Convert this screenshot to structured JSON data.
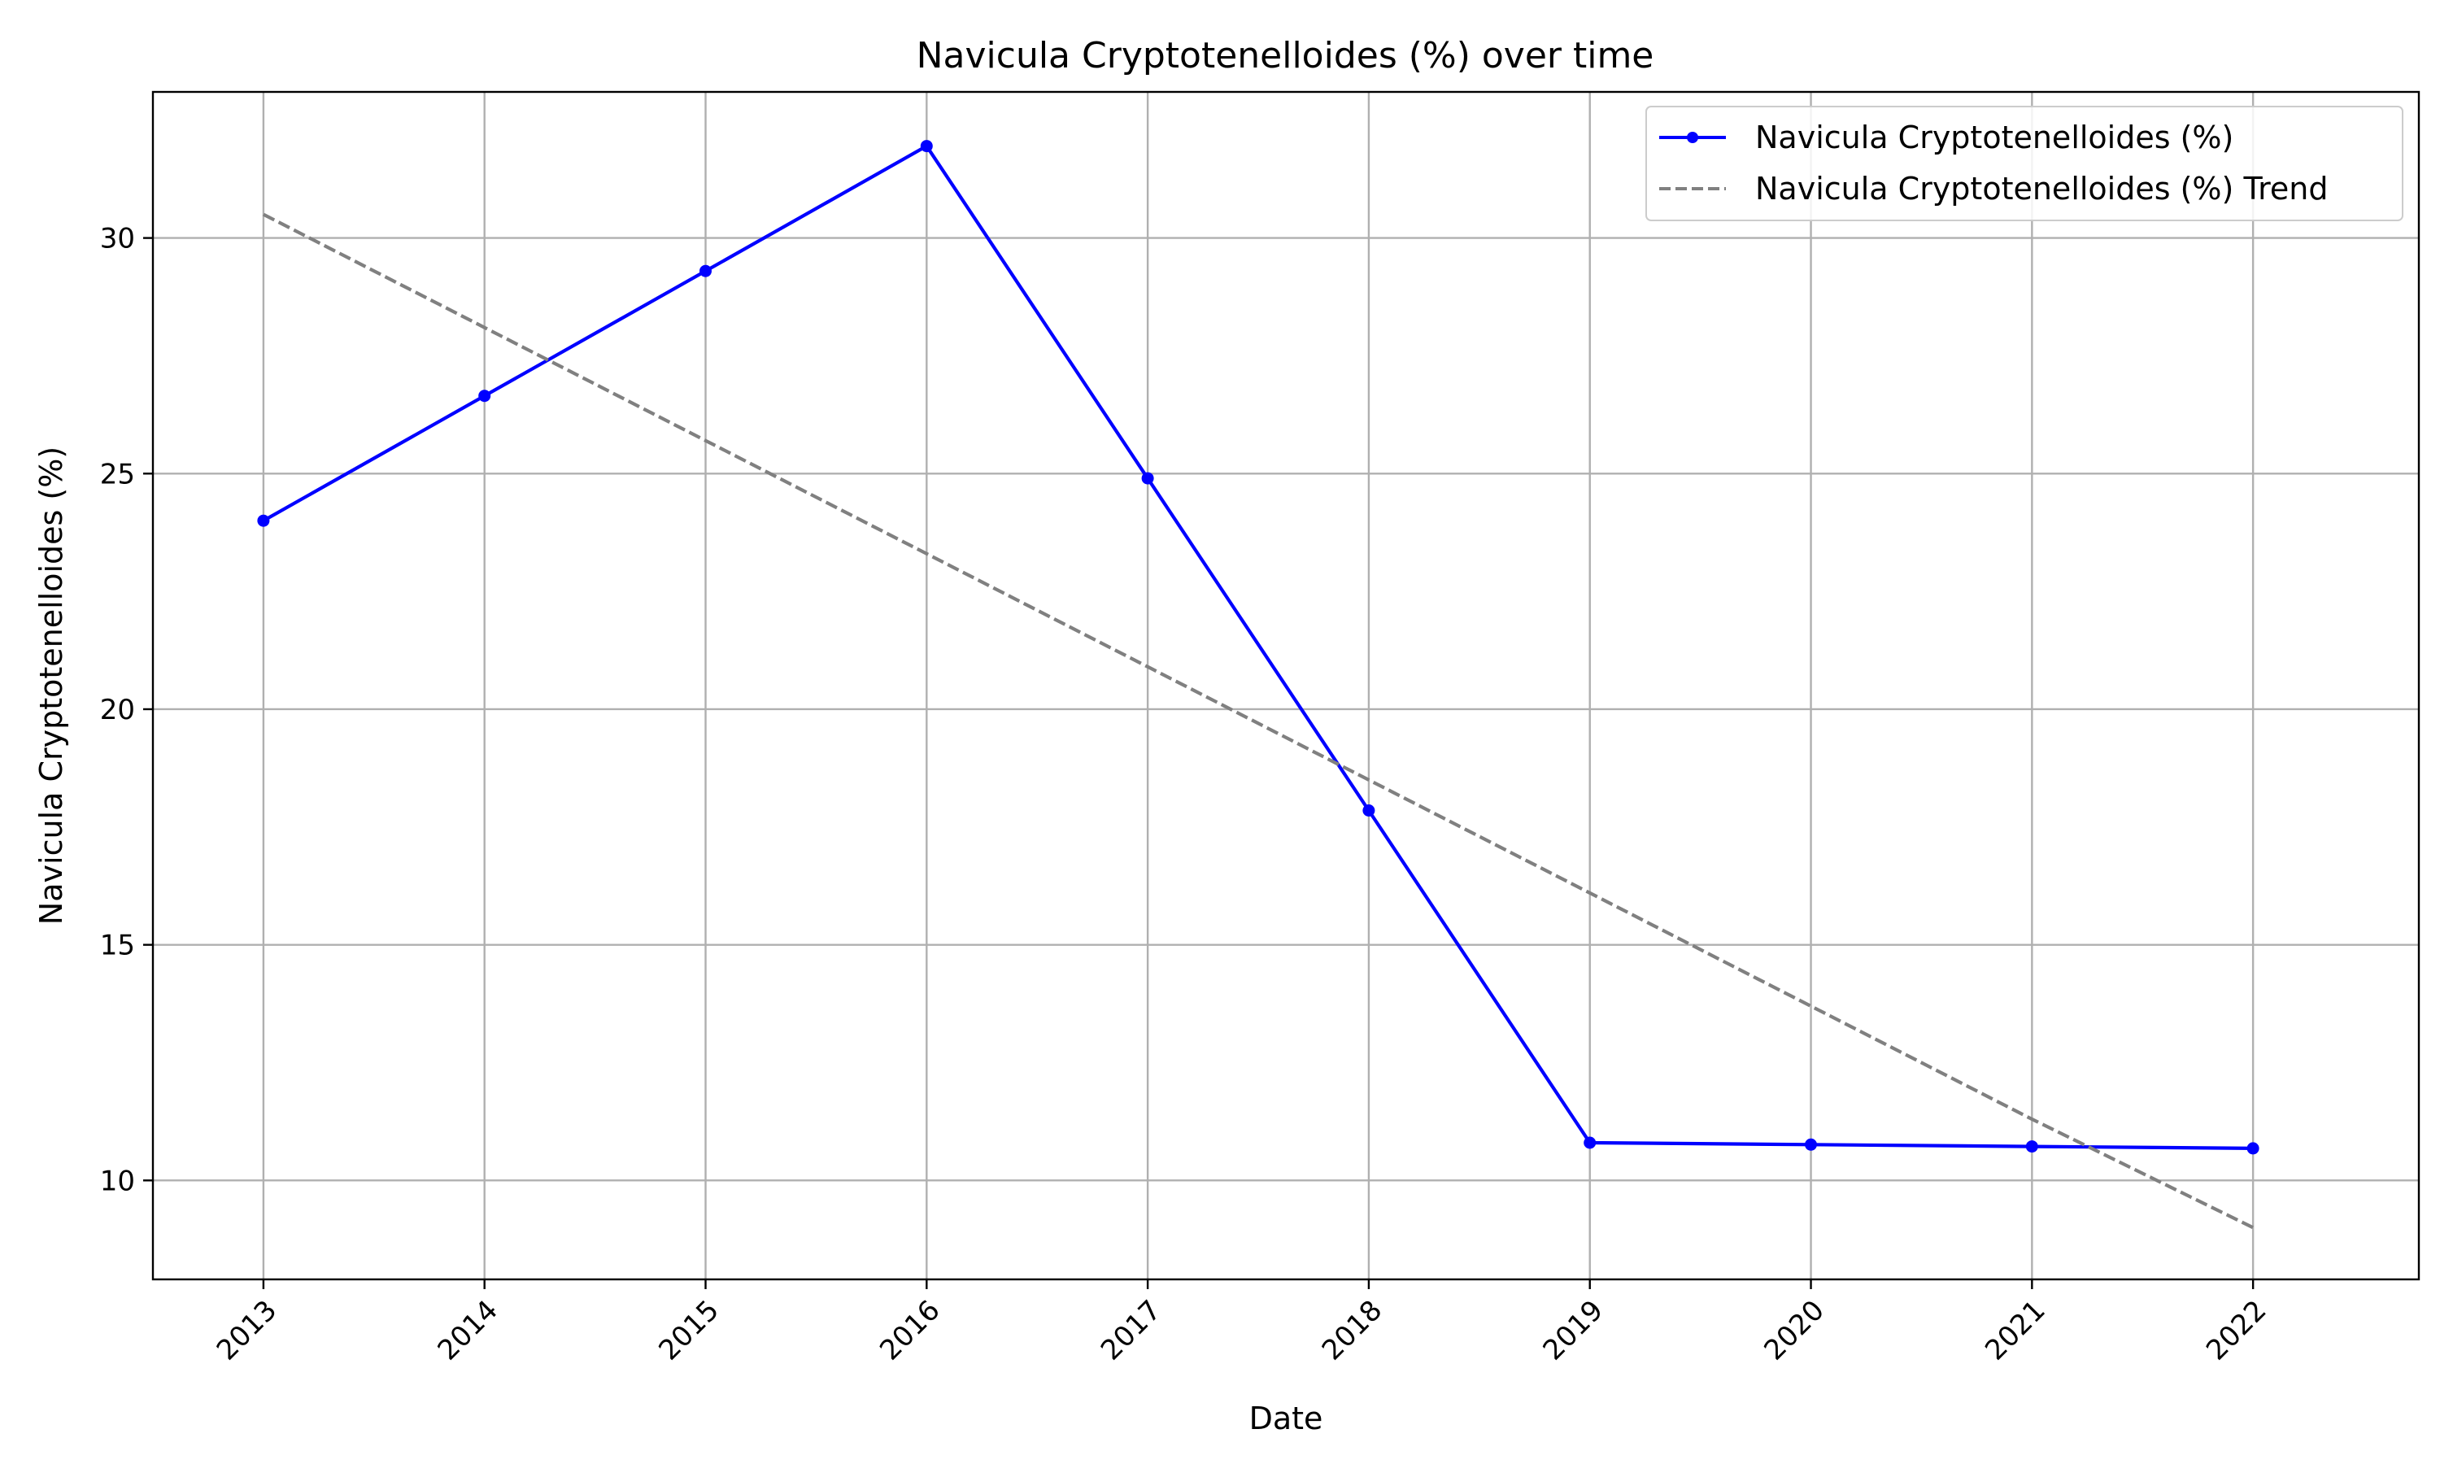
{
  "chart_data": {
    "type": "line",
    "title": "Navicula Cryptotenelloides (%) over time",
    "xlabel": "Date",
    "ylabel": "Navicula Cryptotenelloides (%)",
    "x": [
      "2013",
      "2014",
      "2015",
      "2016",
      "2017",
      "2018",
      "2019",
      "2020",
      "2021",
      "2022"
    ],
    "xlim": [
      "2012-07",
      "2022-10"
    ],
    "ylim": [
      7.9,
      33.1
    ],
    "yticks": [
      10,
      15,
      20,
      25,
      30
    ],
    "grid": true,
    "legend_position": "top-right",
    "series": [
      {
        "name": "Navicula Cryptotenelloides (%)",
        "color": "#0000ff",
        "style": "solid",
        "marker": "circle",
        "values": [
          24.0,
          26.65,
          29.3,
          31.95,
          24.9,
          17.85,
          10.8,
          10.76,
          10.72,
          10.68
        ]
      },
      {
        "name": "Navicula Cryptotenelloides (%) Trend",
        "color": "#808080",
        "style": "dashed",
        "marker": "none",
        "values": [
          30.5,
          28.1,
          25.7,
          23.3,
          20.9,
          18.5,
          16.1,
          13.7,
          11.3,
          9.0
        ]
      }
    ]
  }
}
